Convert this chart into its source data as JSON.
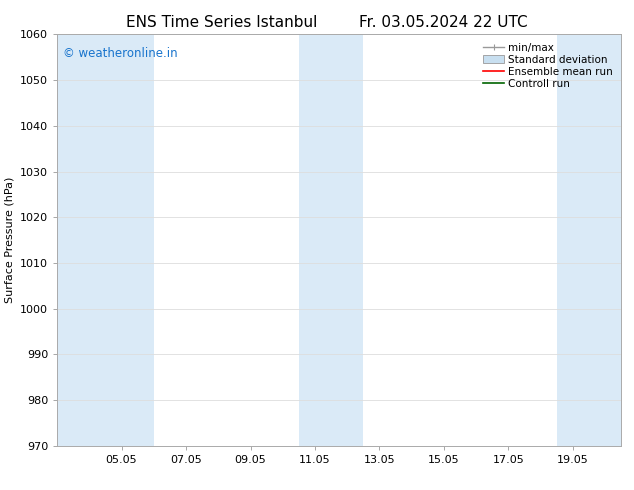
{
  "title_left": "ENS Time Series Istanbul",
  "title_right": "Fr. 03.05.2024 22 UTC",
  "ylabel": "Surface Pressure (hPa)",
  "ylim": [
    970,
    1060
  ],
  "yticks": [
    970,
    980,
    990,
    1000,
    1010,
    1020,
    1030,
    1040,
    1050,
    1060
  ],
  "xtick_labels": [
    "05.05",
    "07.05",
    "09.05",
    "11.05",
    "13.05",
    "15.05",
    "17.05",
    "19.05"
  ],
  "xtick_positions": [
    2,
    4,
    6,
    8,
    10,
    12,
    14,
    16
  ],
  "x_min": 0,
  "x_max": 17.5,
  "shaded_bands": [
    {
      "x_start": 0,
      "x_end": 3,
      "color": "#daeaf7"
    },
    {
      "x_start": 7.5,
      "x_end": 9.5,
      "color": "#daeaf7"
    },
    {
      "x_start": 15.5,
      "x_end": 17.5,
      "color": "#daeaf7"
    }
  ],
  "watermark_text": "© weatheronline.in",
  "watermark_color": "#1874CD",
  "bg_color": "#ffffff",
  "grid_color": "#dddddd",
  "title_fontsize": 11,
  "label_fontsize": 8,
  "tick_fontsize": 8,
  "legend_fontsize": 7.5
}
